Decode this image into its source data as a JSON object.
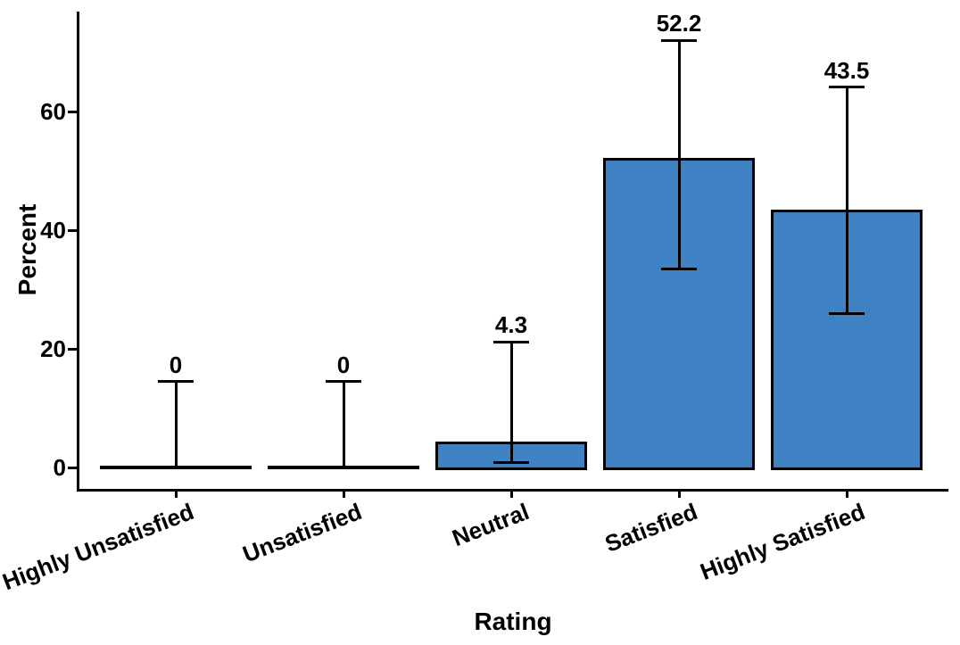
{
  "chart_data": {
    "type": "bar",
    "title": "",
    "xlabel": "Rating",
    "ylabel": "Percent",
    "categories": [
      "Highly Unsatisfied",
      "Unsatisfied",
      "Neutral",
      "Satisfied",
      "Highly Satisfied"
    ],
    "values": [
      0,
      0,
      4.3,
      52.2,
      43.5
    ],
    "value_labels": [
      "0",
      "0",
      "4.3",
      "52.2",
      "43.5"
    ],
    "error_bars": {
      "lower": [
        0,
        0,
        0.8,
        33.4,
        25.9
      ],
      "upper": [
        14.5,
        14.5,
        21.2,
        72.0,
        64.1
      ]
    },
    "yticks": [
      0,
      20,
      40,
      60
    ],
    "ytick_labels": [
      "0",
      "20",
      "40",
      "60"
    ],
    "ylim": [
      0,
      77
    ],
    "xtick_angle_deg": 21,
    "grid": false,
    "legend": false,
    "colors": {
      "bar_fill": "#3E82C4",
      "bar_border": "#000000",
      "errorbar": "#000000",
      "axis": "#000000",
      "text": "#000000",
      "background": "#FFFFFF"
    }
  }
}
